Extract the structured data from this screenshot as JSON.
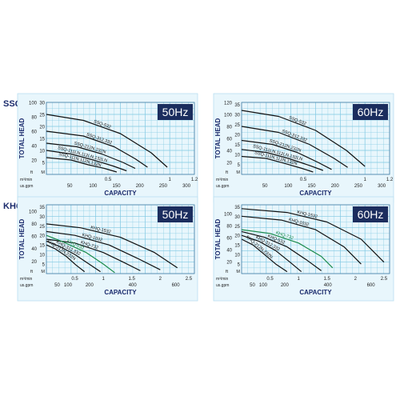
{
  "sections": [
    {
      "label": "SSQ"
    },
    {
      "label": "KHQ"
    }
  ],
  "colors": {
    "grid": "#7ec8e3",
    "curve": "#111111",
    "highlight": "#1a8a4a",
    "label": "#1a2a6c",
    "freq_badge_bg": "#1b2d5e",
    "freq_badge_fg": "#ffffff",
    "plot_bg": "#e8f6fc"
  },
  "chart_data": [
    {
      "type": "line",
      "section": "SSQ",
      "frequency": "50Hz",
      "ylabel": "TOTAL HEAD",
      "xlabel": "CAPACITY",
      "y_ft": {
        "ticks": [
          0,
          20,
          40,
          60,
          80,
          100
        ],
        "range": [
          0,
          100
        ],
        "unit": "ft"
      },
      "y_m": {
        "ticks": [
          5,
          10,
          15,
          20,
          25,
          30
        ],
        "range": [
          0,
          30
        ],
        "unit": "M"
      },
      "x_m3": {
        "ticks": [
          0.5,
          1.0,
          1.2
        ],
        "range": [
          0,
          1.2
        ],
        "unit": "m³/min"
      },
      "x_gpm": {
        "ticks": [
          50,
          100,
          150,
          200,
          250,
          300
        ],
        "range": [
          0,
          317
        ],
        "unit": "us.gpm"
      },
      "series": [
        {
          "name": "SSQ-532",
          "highlight": false,
          "x": [
            0,
            0.3,
            0.6,
            0.85,
            0.98
          ],
          "y": [
            25,
            22.5,
            17,
            9,
            3
          ]
        },
        {
          "name": "SSQ-312,332",
          "highlight": false,
          "x": [
            0,
            0.3,
            0.55,
            0.72,
            0.82
          ],
          "y": [
            18,
            16,
            11.5,
            6.5,
            3
          ]
        },
        {
          "name": "SSQ-212N,232N",
          "highlight": false,
          "x": [
            0,
            0.25,
            0.45,
            0.62,
            0.72
          ],
          "y": [
            13,
            11.5,
            8.5,
            5,
            2.5
          ]
        },
        {
          "name": "SSQ-111LN,112LN,132LN",
          "highlight": false,
          "x": [
            0,
            0.2,
            0.38,
            0.54,
            0.65
          ],
          "y": [
            10,
            8.5,
            6,
            3.5,
            1.5
          ]
        },
        {
          "name": "SSQ-111N,112N,132N",
          "highlight": false,
          "x": [
            0,
            0.2,
            0.34,
            0.47,
            0.57
          ],
          "y": [
            7,
            6,
            4,
            2.5,
            1
          ]
        }
      ]
    },
    {
      "type": "line",
      "section": "SSQ",
      "frequency": "60Hz",
      "ylabel": "TOTAL HEAD",
      "xlabel": "CAPACITY",
      "y_ft": {
        "ticks": [
          0,
          20,
          40,
          60,
          80,
          100,
          120
        ],
        "range": [
          0,
          120
        ],
        "unit": "ft"
      },
      "y_m": {
        "ticks": [
          5,
          10,
          15,
          20,
          25,
          30,
          35
        ],
        "range": [
          0,
          36
        ],
        "unit": "M"
      },
      "x_m3": {
        "ticks": [
          0.5,
          1.0,
          1.2
        ],
        "range": [
          0,
          1.2
        ],
        "unit": "m³/min"
      },
      "x_gpm": {
        "ticks": [
          50,
          100,
          150,
          200,
          250,
          300
        ],
        "range": [
          0,
          317
        ],
        "unit": "us.gpm"
      },
      "series": [
        {
          "name": "SSQ-532",
          "highlight": false,
          "x": [
            0,
            0.3,
            0.6,
            0.85,
            1.0
          ],
          "y": [
            32,
            29,
            22,
            12,
            4
          ]
        },
        {
          "name": "SSQ-312,332",
          "highlight": false,
          "x": [
            0,
            0.3,
            0.55,
            0.75,
            0.86
          ],
          "y": [
            24,
            21,
            15,
            8,
            3.5
          ]
        },
        {
          "name": "SSQ-212N,232N",
          "highlight": false,
          "x": [
            0,
            0.25,
            0.45,
            0.62,
            0.73
          ],
          "y": [
            17,
            15,
            11,
            6,
            2.5
          ]
        },
        {
          "name": "SSQ-111LN,112LN,132LN",
          "highlight": false,
          "x": [
            0,
            0.2,
            0.38,
            0.55,
            0.66
          ],
          "y": [
            12.5,
            11,
            8,
            4.5,
            2
          ]
        },
        {
          "name": "SSQ-111N,112N,132N",
          "highlight": false,
          "x": [
            0,
            0.2,
            0.35,
            0.49,
            0.58
          ],
          "y": [
            9,
            8,
            5.5,
            3,
            1.2
          ]
        }
      ]
    },
    {
      "type": "line",
      "section": "KHQ",
      "frequency": "50Hz",
      "ylabel": "TOTAL HEAD",
      "xlabel": "CAPACITY",
      "y_ft": {
        "ticks": [
          0,
          20,
          40,
          60,
          80,
          100
        ],
        "range": [
          0,
          110
        ],
        "unit": "ft"
      },
      "y_m": {
        "ticks": [
          5,
          10,
          15,
          20,
          25,
          30,
          35
        ],
        "range": [
          0,
          36
        ],
        "unit": "M"
      },
      "x_m3": {
        "ticks": [
          0.5,
          1,
          1.5,
          2,
          2.5
        ],
        "range": [
          0,
          2.6
        ],
        "unit": "m³/min"
      },
      "x_gpm": {
        "ticks": [
          50,
          100,
          200,
          400,
          600
        ],
        "range": [
          0,
          687
        ],
        "unit": "us.gpm"
      },
      "series": [
        {
          "name": "KHQ-1532",
          "highlight": false,
          "x": [
            0,
            0.6,
            1.3,
            1.9,
            2.3
          ],
          "y": [
            26,
            24,
            19,
            11,
            3
          ]
        },
        {
          "name": "KHQ-1032",
          "highlight": false,
          "x": [
            0,
            0.5,
            1.1,
            1.6,
            2.0
          ],
          "y": [
            22,
            20,
            15,
            8,
            2
          ]
        },
        {
          "name": "KHQ-732",
          "highlight": false,
          "x": [
            0,
            0.5,
            1.0,
            1.35,
            1.65
          ],
          "y": [
            18,
            16,
            11,
            6,
            1.5
          ]
        },
        {
          "name": "KHQ-532",
          "highlight": true,
          "x": [
            0,
            0.3,
            0.7,
            1.0,
            1.2
          ],
          "y": [
            20,
            16.5,
            11,
            5,
            0.5
          ]
        },
        {
          "name": "KHQ-312,332",
          "highlight": false,
          "x": [
            0,
            0.25,
            0.5,
            0.75,
            0.95
          ],
          "y": [
            17,
            14,
            10,
            5,
            1
          ]
        },
        {
          "name": "KHQ-212N,232N",
          "highlight": false,
          "x": [
            0,
            0.15,
            0.35,
            0.52,
            0.67
          ],
          "y": [
            15,
            13,
            9,
            4.5,
            1
          ]
        }
      ]
    },
    {
      "type": "line",
      "section": "KHQ",
      "frequency": "60Hz",
      "ylabel": "TOTAL HEAD",
      "xlabel": "CAPACITY",
      "y_ft": {
        "ticks": [
          0,
          20,
          40,
          60,
          80,
          100
        ],
        "range": [
          0,
          115
        ],
        "unit": "ft"
      },
      "y_m": {
        "ticks": [
          5,
          10,
          15,
          20,
          25,
          30,
          35
        ],
        "range": [
          0,
          36
        ],
        "unit": "M"
      },
      "x_m3": {
        "ticks": [
          0.5,
          1,
          1.5,
          2,
          2.5
        ],
        "range": [
          0,
          2.6
        ],
        "unit": "m³/min"
      },
      "x_gpm": {
        "ticks": [
          50,
          100,
          200,
          400,
          600
        ],
        "range": [
          0,
          687
        ],
        "unit": "us.gpm"
      },
      "series": [
        {
          "name": "KHQ-1532",
          "highlight": false,
          "x": [
            0,
            0.8,
            1.5,
            2.1,
            2.5
          ],
          "y": [
            34,
            32,
            27,
            18,
            6
          ]
        },
        {
          "name": "KHQ-1032",
          "highlight": false,
          "x": [
            0,
            0.7,
            1.3,
            1.8,
            2.1
          ],
          "y": [
            30,
            28,
            23,
            14,
            5
          ]
        },
        {
          "name": "KHQ-732",
          "highlight": true,
          "x": [
            0,
            0.5,
            1.0,
            1.4,
            1.6
          ],
          "y": [
            23,
            21,
            16,
            9,
            3
          ]
        },
        {
          "name": "KHQ-532",
          "highlight": false,
          "x": [
            0,
            0.4,
            0.8,
            1.15,
            1.4
          ],
          "y": [
            22,
            19,
            14,
            7,
            1.5
          ]
        },
        {
          "name": "KHQ-312,332",
          "highlight": false,
          "x": [
            0,
            0.3,
            0.6,
            0.85,
            1.05
          ],
          "y": [
            20,
            17,
            12,
            6,
            1
          ]
        },
        {
          "name": "KHQ-212N,232N",
          "highlight": false,
          "x": [
            0,
            0.2,
            0.4,
            0.6,
            0.8
          ],
          "y": [
            18,
            15,
            10,
            5,
            1
          ]
        }
      ]
    }
  ]
}
